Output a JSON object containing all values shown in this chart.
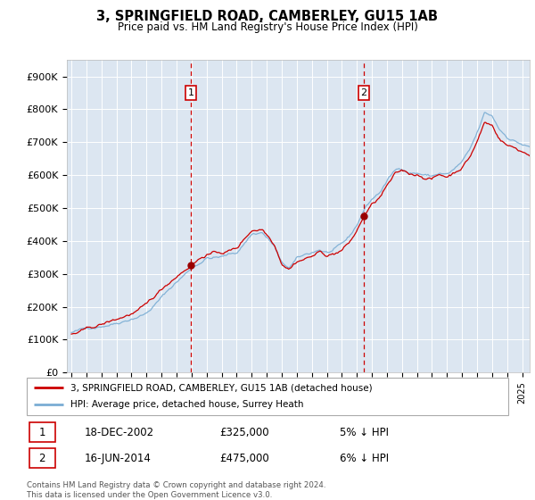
{
  "title": "3, SPRINGFIELD ROAD, CAMBERLEY, GU15 1AB",
  "subtitle": "Price paid vs. HM Land Registry's House Price Index (HPI)",
  "ylabel_ticks": [
    "£0",
    "£100K",
    "£200K",
    "£300K",
    "£400K",
    "£500K",
    "£600K",
    "£700K",
    "£800K",
    "£900K"
  ],
  "ytick_values": [
    0,
    100000,
    200000,
    300000,
    400000,
    500000,
    600000,
    700000,
    800000,
    900000
  ],
  "ylim": [
    0,
    950000
  ],
  "sale1_year": 2002.958,
  "sale2_year": 2014.458,
  "sale1_price": 325000,
  "sale2_price": 475000,
  "sale1_date": "18-DEC-2002",
  "sale2_date": "16-JUN-2014",
  "sale1_pct": "5% ↓ HPI",
  "sale2_pct": "6% ↓ HPI",
  "legend_label1": "3, SPRINGFIELD ROAD, CAMBERLEY, GU15 1AB (detached house)",
  "legend_label2": "HPI: Average price, detached house, Surrey Heath",
  "footer": "Contains HM Land Registry data © Crown copyright and database right 2024.\nThis data is licensed under the Open Government Licence v3.0.",
  "color_red": "#cc0000",
  "color_blue": "#7aadd4",
  "bg_color": "#dce6f1",
  "annotation_box_color": "#cc0000",
  "vline_color": "#cc0000",
  "grid_color": "#ffffff",
  "sale_dot_color": "#990000",
  "xstart": 1994.7,
  "xend": 2025.5
}
